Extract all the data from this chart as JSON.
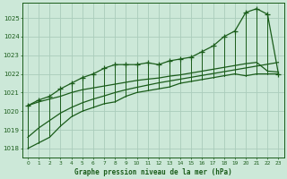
{
  "title": "Graphe pression niveau de la mer (hPa)",
  "ylim": [
    1017.5,
    1025.8
  ],
  "yticks": [
    1018,
    1019,
    1020,
    1021,
    1022,
    1023,
    1024,
    1025
  ],
  "bg_color": "#cce8d8",
  "grid_color": "#aaccbb",
  "line_color": "#1a5c1a",
  "hours": [
    0,
    1,
    2,
    3,
    4,
    5,
    6,
    7,
    8,
    9,
    10,
    11,
    12,
    13,
    14,
    15,
    16,
    17,
    18,
    19,
    20,
    21,
    22,
    23
  ],
  "pressure_max": [
    1020.3,
    1020.6,
    1020.8,
    1021.2,
    1021.5,
    1021.8,
    1022.0,
    1022.3,
    1022.5,
    1022.5,
    1022.5,
    1022.6,
    1022.5,
    1022.7,
    1022.8,
    1022.9,
    1023.2,
    1023.5,
    1024.0,
    1024.3,
    1025.3,
    1025.5,
    1025.2,
    1022.0
  ],
  "pressure_min": [
    1018.0,
    1018.3,
    1018.6,
    1019.2,
    1019.7,
    1020.0,
    1020.2,
    1020.4,
    1020.5,
    1020.8,
    1021.0,
    1021.1,
    1021.2,
    1021.3,
    1021.5,
    1021.6,
    1021.7,
    1021.8,
    1021.9,
    1022.0,
    1021.9,
    1022.0,
    1022.0,
    1022.0
  ],
  "pressure_mean": [
    1020.3,
    1020.5,
    1020.65,
    1020.8,
    1021.0,
    1021.15,
    1021.25,
    1021.35,
    1021.45,
    1021.55,
    1021.65,
    1021.72,
    1021.78,
    1021.88,
    1021.95,
    1022.05,
    1022.15,
    1022.25,
    1022.35,
    1022.45,
    1022.55,
    1022.62,
    1022.15,
    1022.1
  ],
  "pressure_trend": [
    1018.6,
    1019.1,
    1019.5,
    1019.9,
    1020.2,
    1020.45,
    1020.65,
    1020.82,
    1021.0,
    1021.15,
    1021.28,
    1021.4,
    1021.52,
    1021.62,
    1021.72,
    1021.82,
    1021.92,
    1022.02,
    1022.12,
    1022.22,
    1022.32,
    1022.42,
    1022.52,
    1022.62
  ]
}
